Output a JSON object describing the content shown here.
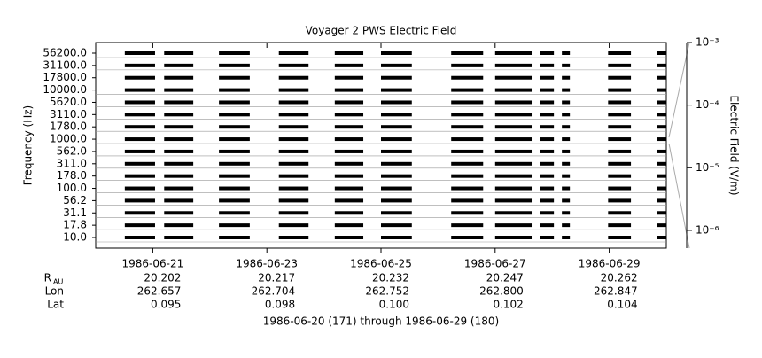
{
  "chart_data": {
    "type": "channel-strips",
    "title": "Voyager 2 PWS Electric Field",
    "ylabel": "Frequency (Hz)",
    "y2label": "Electric Field (V/m)",
    "categories": [
      "10.0",
      "17.8",
      "31.1",
      "56.2",
      "100.0",
      "178.0",
      "311.0",
      "562.0",
      "1000.0",
      "1780.0",
      "3110.0",
      "5620.0",
      "10000.0",
      "17800.0",
      "31100.0",
      "56200.0"
    ],
    "color": "#000000",
    "xlim": [
      171,
      181
    ],
    "xticks": [
      {
        "value": 172,
        "label": "1986-06-21"
      },
      {
        "value": 174,
        "label": "1986-06-23"
      },
      {
        "value": 176,
        "label": "1986-06-25"
      },
      {
        "value": 178,
        "label": "1986-06-27"
      },
      {
        "value": 180,
        "label": "1986-06-29"
      }
    ],
    "segments": [
      [
        171.51,
        172.04
      ],
      [
        172.2,
        172.71
      ],
      [
        173.16,
        173.7
      ],
      [
        174.21,
        174.73
      ],
      [
        175.19,
        175.69
      ],
      [
        176.0,
        176.54
      ],
      [
        177.23,
        177.79
      ],
      [
        178.0,
        178.64
      ],
      [
        178.78,
        179.03
      ],
      [
        179.17,
        179.31
      ],
      [
        179.98,
        180.38
      ],
      [
        180.84,
        181.0
      ]
    ],
    "y2_log": true,
    "y2lim": [
      5.2e-07,
      0.001
    ],
    "y2ticks": [
      {
        "value": 0.001,
        "label": "10⁻³"
      },
      {
        "value": 0.0001,
        "label": "10⁻⁴"
      },
      {
        "value": 1e-05,
        "label": "10⁻⁵"
      },
      {
        "value": 1e-06,
        "label": "10⁻⁶"
      }
    ],
    "ephemeris": [
      {
        "label": "R",
        "subscript": "AU",
        "values": [
          "20.202",
          "20.217",
          "20.232",
          "20.247",
          "20.262"
        ]
      },
      {
        "label": "Lon",
        "values": [
          "262.657",
          "262.704",
          "262.752",
          "262.800",
          "262.847"
        ]
      },
      {
        "label": "Lat",
        "values": [
          "0.095",
          "0.098",
          "0.100",
          "0.102",
          "0.104"
        ]
      }
    ],
    "footer": "1986-06-20 (171) through 1986-06-29 (180)"
  }
}
